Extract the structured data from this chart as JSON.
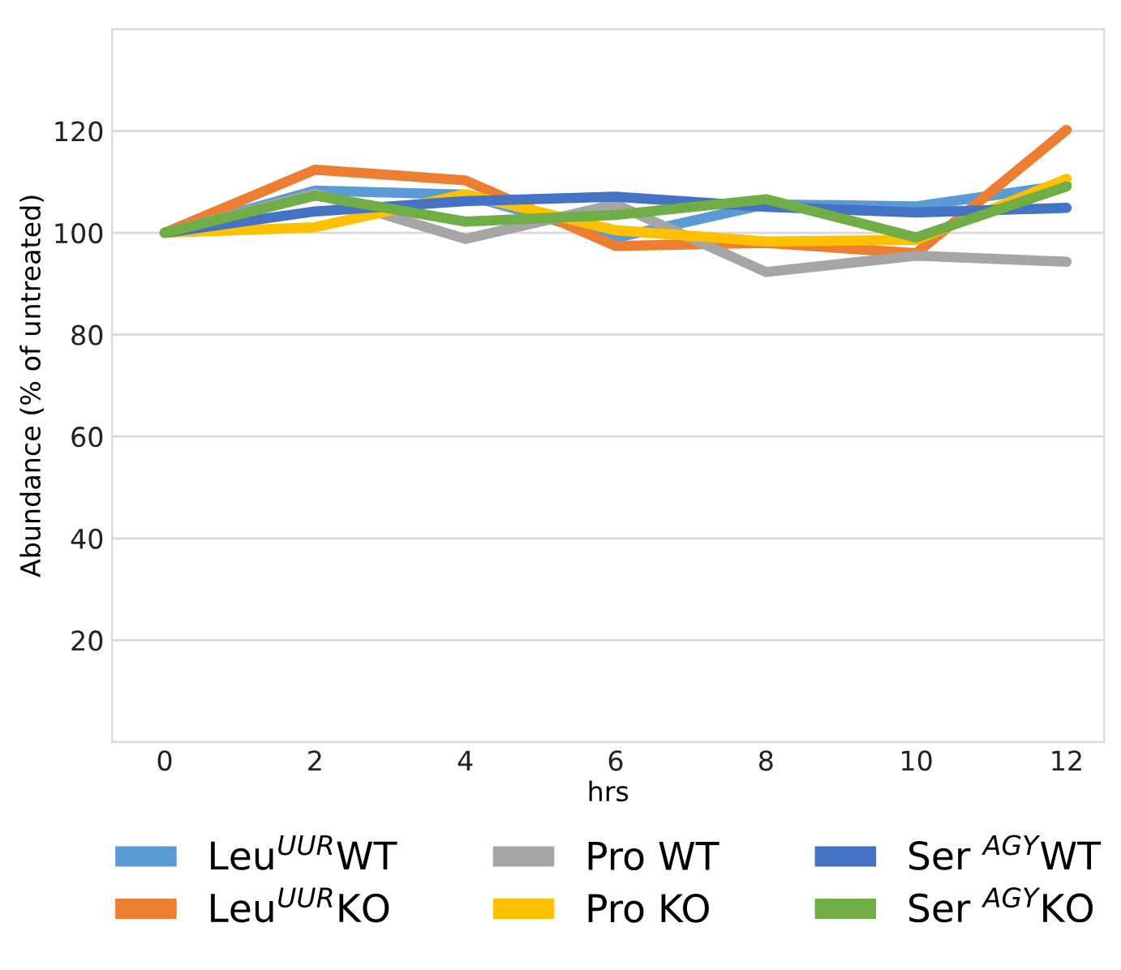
{
  "chart_data": {
    "type": "line",
    "xlabel": "hrs",
    "ylabel": "Abundance (% of untreated)",
    "x": [
      0,
      2,
      4,
      6,
      8,
      10,
      12
    ],
    "xlim": [
      -0.7,
      12.5
    ],
    "xticks": [
      0,
      2,
      4,
      6,
      8,
      10,
      12
    ],
    "ylim": [
      0,
      140
    ],
    "yticks": [
      {
        "value": 0,
        "label": null
      },
      20,
      40,
      60,
      80,
      100,
      120,
      {
        "value": 140,
        "label": null
      }
    ],
    "grid": "y",
    "legend": "bottom",
    "marker": "none",
    "line_style": "solid",
    "series": [
      {
        "name": "Leu$^{UUR}$WT",
        "color": "#5b9bd5",
        "values": [
          100,
          108.3,
          107.5,
          99,
          105.6,
          105.2,
          109.4
        ]
      },
      {
        "name": "Leu$^{UUR}$KO",
        "color": "#ed7d31",
        "values": [
          100,
          112.4,
          110.3,
          97.4,
          98,
          96,
          120.2
        ]
      },
      {
        "name": "Pro WT",
        "color": "#a5a5a5",
        "values": [
          100,
          107.7,
          98.8,
          105.6,
          92.3,
          95.5,
          94.3
        ]
      },
      {
        "name": "Pro KO",
        "color": "#ffc000",
        "values": [
          100,
          101.1,
          107.6,
          100.5,
          98.3,
          98.6,
          110.6
        ]
      },
      {
        "name": "Ser $^{AGY}$WT",
        "color": "#4472c4",
        "values": [
          100,
          104.2,
          106.2,
          107.1,
          105.1,
          104,
          104.9
        ]
      },
      {
        "name": "Ser $^{AGY}$KO",
        "color": "#70ad47",
        "values": [
          100,
          107.3,
          102.2,
          103.5,
          106.6,
          99.1,
          109.1
        ]
      }
    ]
  }
}
